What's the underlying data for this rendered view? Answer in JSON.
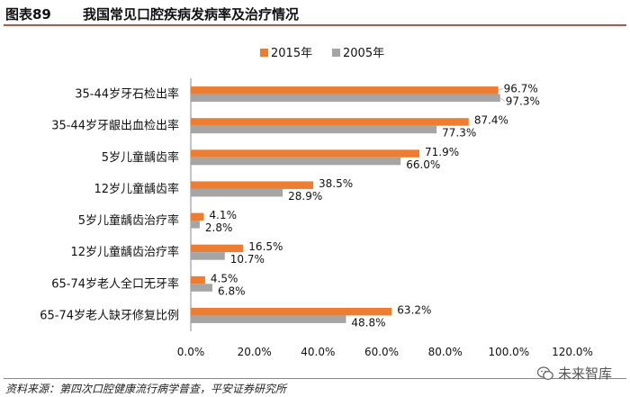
{
  "header": {
    "figure_no": "图表89",
    "title": "我国常见口腔疾病发病率及治疗情况"
  },
  "chart_data": {
    "type": "bar",
    "orientation": "horizontal",
    "categories": [
      "35-44岁牙石检出率",
      "35-44岁牙龈出血检出率",
      "5岁儿童龋齿率",
      "12岁儿童龋齿率",
      "5岁儿童龋齿治疗率",
      "12岁儿童龋齿治疗率",
      "65-74岁老人全口无牙率",
      "65-74岁老人缺牙修复比例"
    ],
    "series": [
      {
        "name": "2015年",
        "color": "#ed7d31",
        "values": [
          96.7,
          87.4,
          71.9,
          38.5,
          4.1,
          16.5,
          4.5,
          63.2
        ],
        "labels": [
          "96.7%",
          "87.4%",
          "71.9%",
          "38.5%",
          "4.1%",
          "16.5%",
          "4.5%",
          "63.2%"
        ]
      },
      {
        "name": "2005年",
        "color": "#a5a5a5",
        "values": [
          97.3,
          77.3,
          66.0,
          28.9,
          2.8,
          10.7,
          6.8,
          48.8
        ],
        "labels": [
          "97.3%",
          "77.3%",
          "66.0%",
          "28.9%",
          "2.8%",
          "10.7%",
          "6.8%",
          "48.8%"
        ]
      }
    ],
    "xlim": [
      0,
      120
    ],
    "xticks": [
      0,
      20,
      40,
      60,
      80,
      100,
      120
    ],
    "xtick_labels": [
      "0.0%",
      "20.0%",
      "40.0%",
      "60.0%",
      "80.0%",
      "100.0%",
      "120.0%"
    ],
    "legend_position": "top",
    "grid": false
  },
  "footer": {
    "source": "资料来源：第四次口腔健康流行病学普查，平安证券研究所",
    "watermark": "未来智库"
  }
}
